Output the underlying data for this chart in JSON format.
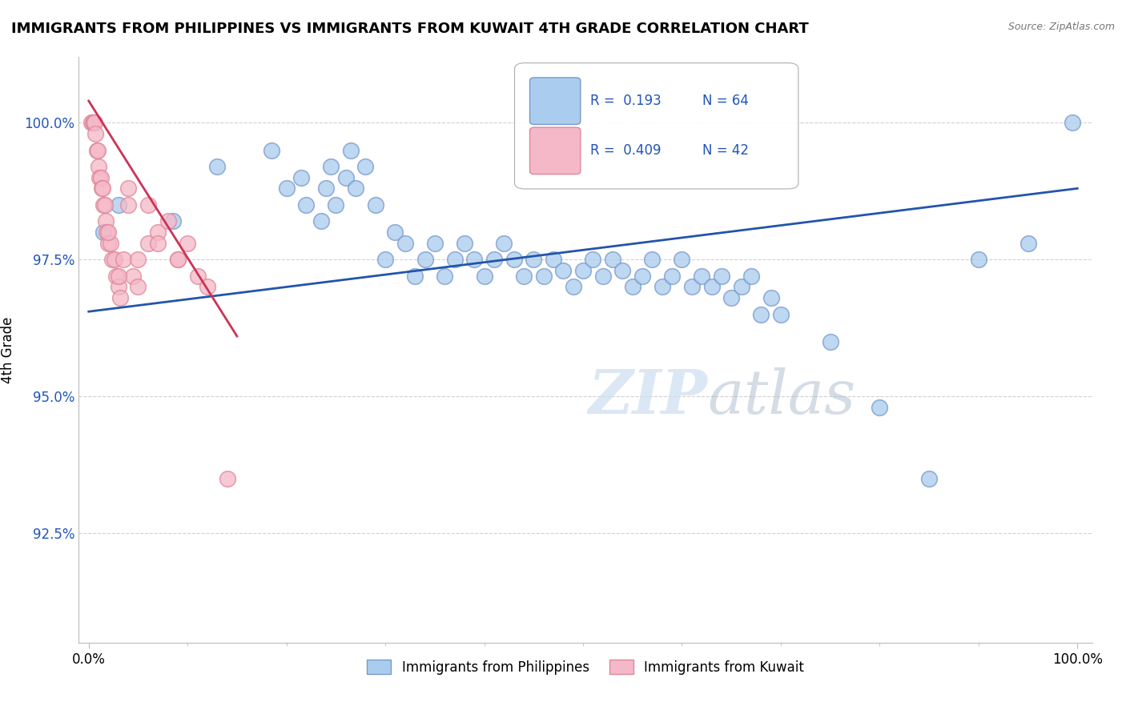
{
  "title": "IMMIGRANTS FROM PHILIPPINES VS IMMIGRANTS FROM KUWAIT 4TH GRADE CORRELATION CHART",
  "source": "Source: ZipAtlas.com",
  "ylabel": "4th Grade",
  "y_min": 90.5,
  "y_max": 101.2,
  "x_min": -1.0,
  "x_max": 101.5,
  "legend_r1": "R =  0.193",
  "legend_n1": "N = 64",
  "legend_r2": "R =  0.409",
  "legend_n2": "N = 42",
  "blue_color": "#aaccee",
  "blue_edge_color": "#7799cc",
  "pink_color": "#f5b8c8",
  "pink_edge_color": "#dd8899",
  "blue_line_color": "#2255aa",
  "pink_line_color": "#cc3355",
  "blue_trend_x0": 0.0,
  "blue_trend_y0": 96.55,
  "blue_trend_x1": 100.0,
  "blue_trend_y1": 98.8,
  "pink_trend_x0": 0.0,
  "pink_trend_y0": 100.4,
  "pink_trend_x1": 15.0,
  "pink_trend_y1": 96.1,
  "blue_dots_x": [
    1.5,
    3.0,
    8.5,
    13.0,
    18.5,
    20.0,
    21.5,
    22.0,
    23.5,
    24.0,
    24.5,
    25.0,
    26.0,
    26.5,
    27.0,
    28.0,
    29.0,
    30.0,
    31.0,
    32.0,
    33.0,
    34.0,
    35.0,
    36.0,
    37.0,
    38.0,
    39.0,
    40.0,
    41.0,
    42.0,
    43.0,
    44.0,
    45.0,
    46.0,
    47.0,
    48.0,
    49.0,
    50.0,
    51.0,
    52.0,
    53.0,
    54.0,
    55.0,
    56.0,
    57.0,
    58.0,
    59.0,
    60.0,
    61.0,
    62.0,
    63.0,
    64.0,
    65.0,
    66.0,
    67.0,
    68.0,
    69.0,
    70.0,
    75.0,
    80.0,
    85.0,
    90.0,
    95.0,
    99.5
  ],
  "blue_dots_y": [
    98.0,
    98.5,
    98.2,
    99.2,
    99.5,
    98.8,
    99.0,
    98.5,
    98.2,
    98.8,
    99.2,
    98.5,
    99.0,
    99.5,
    98.8,
    99.2,
    98.5,
    97.5,
    98.0,
    97.8,
    97.2,
    97.5,
    97.8,
    97.2,
    97.5,
    97.8,
    97.5,
    97.2,
    97.5,
    97.8,
    97.5,
    97.2,
    97.5,
    97.2,
    97.5,
    97.3,
    97.0,
    97.3,
    97.5,
    97.2,
    97.5,
    97.3,
    97.0,
    97.2,
    97.5,
    97.0,
    97.2,
    97.5,
    97.0,
    97.2,
    97.0,
    97.2,
    96.8,
    97.0,
    97.2,
    96.5,
    96.8,
    96.5,
    96.0,
    94.8,
    93.5,
    97.5,
    97.8,
    100.0
  ],
  "pink_dots_x": [
    0.3,
    0.4,
    0.5,
    0.6,
    0.7,
    0.8,
    0.9,
    1.0,
    1.1,
    1.2,
    1.3,
    1.4,
    1.5,
    1.6,
    1.7,
    1.8,
    2.0,
    2.2,
    2.4,
    2.6,
    2.8,
    3.0,
    3.2,
    3.5,
    4.0,
    4.5,
    5.0,
    6.0,
    7.0,
    8.0,
    9.0,
    10.0,
    11.0,
    12.0,
    14.0,
    2.0,
    3.0,
    4.0,
    5.0,
    6.0,
    7.0,
    9.0
  ],
  "pink_dots_y": [
    100.0,
    100.0,
    100.0,
    100.0,
    99.8,
    99.5,
    99.5,
    99.2,
    99.0,
    99.0,
    98.8,
    98.8,
    98.5,
    98.5,
    98.2,
    98.0,
    97.8,
    97.8,
    97.5,
    97.5,
    97.2,
    97.0,
    96.8,
    97.5,
    98.5,
    97.2,
    97.5,
    97.8,
    98.0,
    98.2,
    97.5,
    97.8,
    97.2,
    97.0,
    93.5,
    98.0,
    97.2,
    98.8,
    97.0,
    98.5,
    97.8,
    97.5
  ]
}
